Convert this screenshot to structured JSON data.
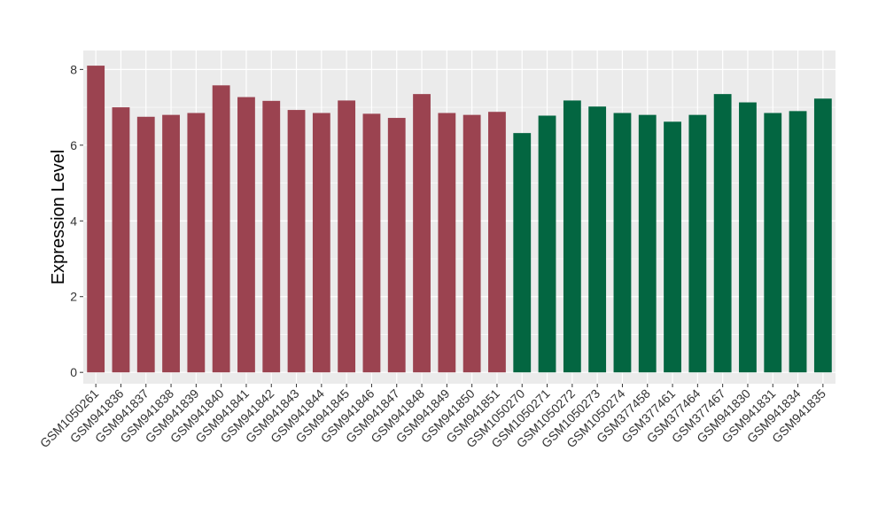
{
  "chart_data": {
    "type": "bar",
    "ylabel": "Expression Level",
    "xlabel": "",
    "ylim": [
      -0.3,
      8.5
    ],
    "yticks": [
      0,
      2,
      4,
      6,
      8
    ],
    "grid": true,
    "background_color": "#ebebeb",
    "gridline_color": "#ffffff",
    "categories": [
      "GSM1050261",
      "GSM941836",
      "GSM941837",
      "GSM941838",
      "GSM941839",
      "GSM941840",
      "GSM941841",
      "GSM941842",
      "GSM941843",
      "GSM941844",
      "GSM941845",
      "GSM941846",
      "GSM941847",
      "GSM941848",
      "GSM941849",
      "GSM941850",
      "GSM941851",
      "GSM1050270",
      "GSM1050271",
      "GSM1050272",
      "GSM1050273",
      "GSM1050274",
      "GSM377458",
      "GSM377461",
      "GSM377464",
      "GSM377467",
      "GSM941830",
      "GSM941831",
      "GSM941834",
      "GSM941835"
    ],
    "values": [
      8.1,
      7.0,
      6.75,
      6.8,
      6.85,
      7.58,
      7.27,
      7.17,
      6.93,
      6.85,
      7.18,
      6.83,
      6.72,
      7.35,
      6.85,
      6.8,
      6.88,
      6.32,
      6.78,
      7.18,
      7.02,
      6.85,
      6.8,
      6.62,
      6.8,
      7.35,
      7.13,
      6.85,
      6.9,
      7.23
    ],
    "bar_colors": [
      "#9b4350",
      "#9b4350",
      "#9b4350",
      "#9b4350",
      "#9b4350",
      "#9b4350",
      "#9b4350",
      "#9b4350",
      "#9b4350",
      "#9b4350",
      "#9b4350",
      "#9b4350",
      "#9b4350",
      "#9b4350",
      "#9b4350",
      "#9b4350",
      "#9b4350",
      "#036641",
      "#036641",
      "#036641",
      "#036641",
      "#036641",
      "#036641",
      "#036641",
      "#036641",
      "#036641",
      "#036641",
      "#036641",
      "#036641",
      "#036641"
    ]
  }
}
